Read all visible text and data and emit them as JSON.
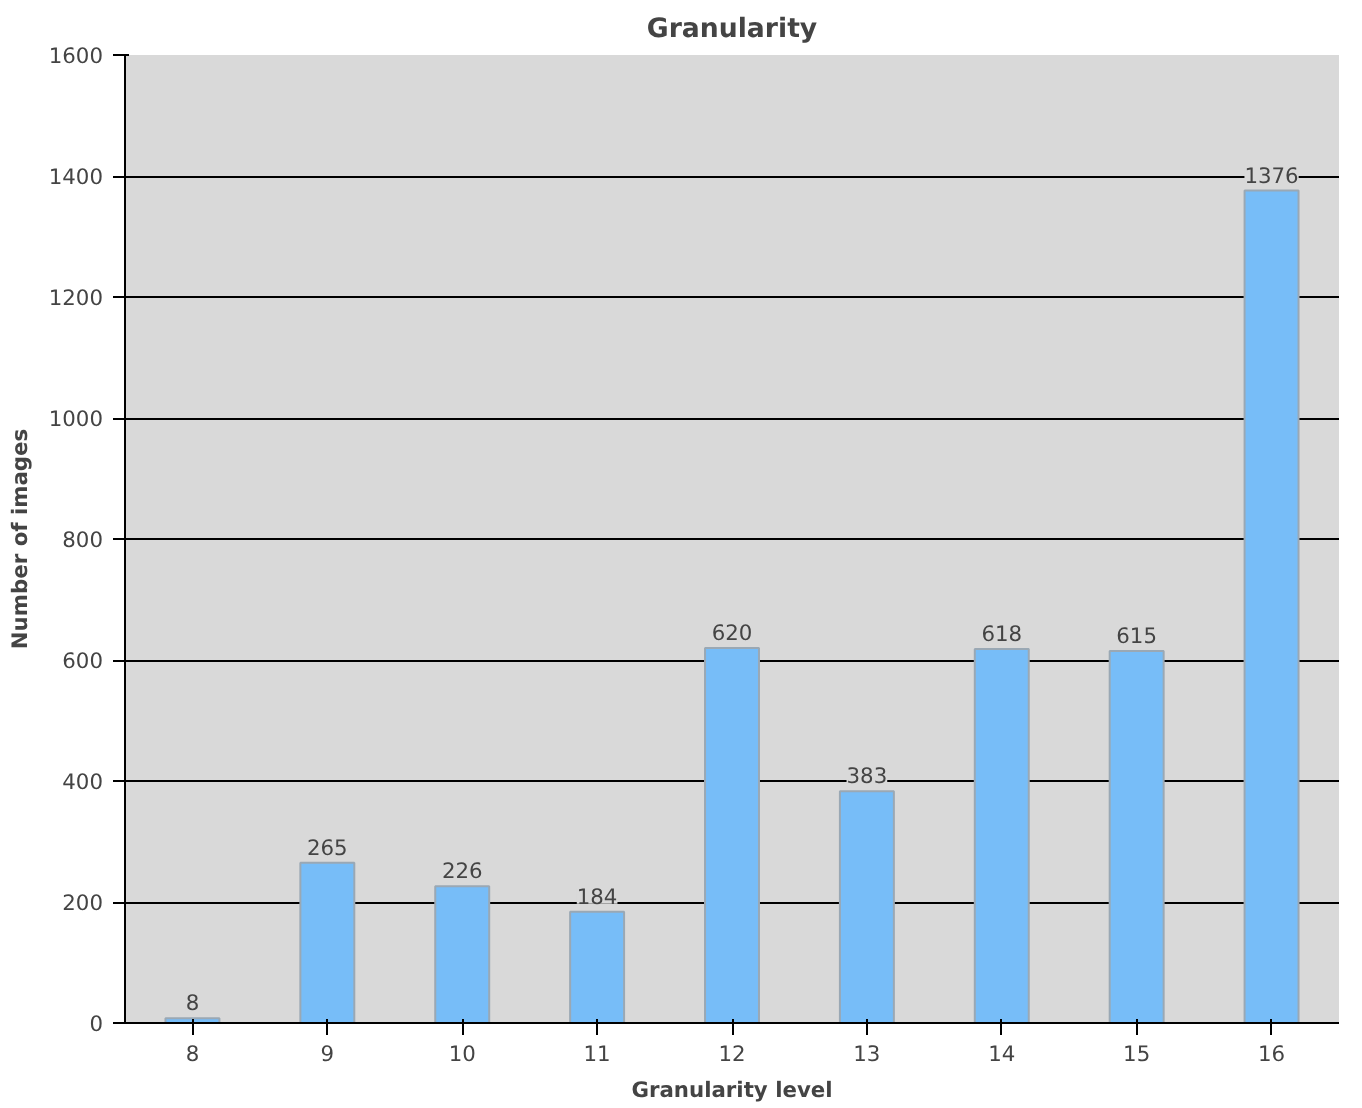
{
  "chart_data": {
    "type": "bar",
    "title": "Granularity",
    "xlabel": "Granularity level",
    "ylabel": "Number of images",
    "categories": [
      "8",
      "9",
      "10",
      "11",
      "12",
      "13",
      "14",
      "15",
      "16"
    ],
    "values": [
      8,
      265,
      226,
      184,
      620,
      383,
      618,
      615,
      1376
    ],
    "color": "#77bdf8",
    "ylim": [
      0,
      1600
    ],
    "yticks": [
      0,
      200,
      400,
      600,
      800,
      1000,
      1200,
      1400,
      1600
    ],
    "grid": "y",
    "data_labels": true
  }
}
